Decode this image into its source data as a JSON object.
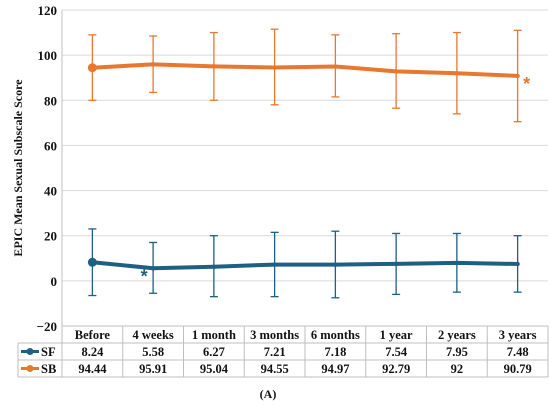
{
  "chart_data": {
    "type": "line",
    "ylabel": "EPIC Mean Sexual Subscale Score",
    "ylim": [
      -20,
      120
    ],
    "yticks": [
      -20,
      0,
      20,
      40,
      60,
      80,
      100,
      120
    ],
    "grid": true,
    "categories": [
      "Before",
      "4 weeks",
      "1 month",
      "3 months",
      "6 months",
      "1 year",
      "2 years",
      "3 years"
    ],
    "series": [
      {
        "name": "SF",
        "color": "#1f5f82",
        "values": [
          8.24,
          5.58,
          6.27,
          7.21,
          7.18,
          7.54,
          7.95,
          7.48
        ],
        "value_labels": [
          "8.24",
          "5.58",
          "6.27",
          "7.21",
          "7.18",
          "7.54",
          "7.95",
          "7.48"
        ],
        "err_upper": [
          23,
          17,
          20,
          21.5,
          22,
          21,
          21,
          20
        ],
        "err_lower": [
          -6.5,
          -5.5,
          -7,
          -7,
          -7.5,
          -6,
          -5,
          -5
        ],
        "significance_marker_index": 1
      },
      {
        "name": "SB",
        "color": "#e8782f",
        "values": [
          94.44,
          95.91,
          95.04,
          94.55,
          94.97,
          92.79,
          92,
          90.79
        ],
        "value_labels": [
          "94.44",
          "95.91",
          "95.04",
          "94.55",
          "94.97",
          "92.79",
          "92",
          "90.79"
        ],
        "err_upper": [
          109,
          108.5,
          110,
          111.5,
          109,
          109.5,
          110,
          111
        ],
        "err_lower": [
          80,
          83.5,
          80,
          78,
          81.5,
          76.5,
          74,
          70.5
        ],
        "significance_marker_index": 7
      }
    ],
    "significance_symbol": "*",
    "panel_label": "(A)"
  }
}
